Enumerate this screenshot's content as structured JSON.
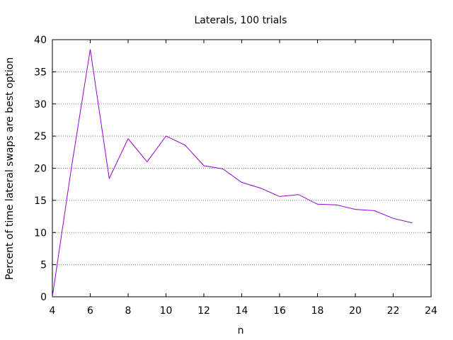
{
  "chart_data": {
    "type": "line",
    "title": "Laterals, 100 trials",
    "xlabel": "n",
    "ylabel": "Percent of time lateral swaps are best option",
    "xlim": [
      4,
      24
    ],
    "ylim": [
      0,
      40
    ],
    "xticks": [
      4,
      6,
      8,
      10,
      12,
      14,
      16,
      18,
      20,
      22,
      24
    ],
    "yticks": [
      0,
      5,
      10,
      15,
      20,
      25,
      30,
      35,
      40
    ],
    "grid": "horizontal dotted",
    "legend": "none",
    "series": [
      {
        "color": "#9900cc",
        "x": [
          4,
          5,
          6,
          7,
          8,
          9,
          10,
          11,
          12,
          13,
          14,
          15,
          16,
          17,
          18,
          19,
          20,
          21,
          22,
          23
        ],
        "values": [
          0,
          20,
          38.5,
          18.4,
          24.6,
          21.0,
          25.0,
          23.6,
          20.4,
          19.9,
          17.8,
          16.9,
          15.6,
          15.9,
          14.4,
          14.3,
          13.6,
          13.4,
          12.2,
          11.5
        ]
      }
    ]
  }
}
